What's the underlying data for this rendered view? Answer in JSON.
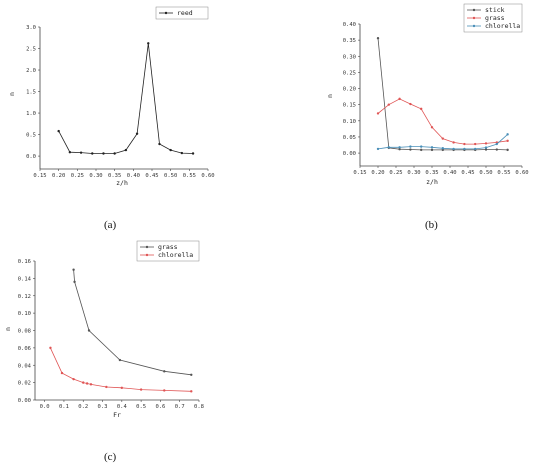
{
  "panel_labels": {
    "a": "(a)",
    "b": "(b)",
    "c": "(c)"
  },
  "chart_data": [
    {
      "id": "a",
      "type": "line",
      "xlabel": "z/h",
      "ylabel": "n",
      "xlim": [
        0.15,
        0.6
      ],
      "ylim": [
        -0.3,
        3.0
      ],
      "xticks": [
        0.15,
        0.2,
        0.25,
        0.3,
        0.35,
        0.4,
        0.45,
        0.5,
        0.55,
        0.6
      ],
      "yticks": [
        0.0,
        0.5,
        1.0,
        1.5,
        2.0,
        2.5,
        3.0
      ],
      "xtick_labels": [
        "0.15",
        "0.20",
        "0.25",
        "0.30",
        "0.35",
        "0.40",
        "0.45",
        "0.50",
        "0.55",
        "0.60"
      ],
      "ytick_labels": [
        "0.0",
        "0.5",
        "1.0",
        "1.5",
        "2.0",
        "2.5",
        "3.0"
      ],
      "legend_position": "top-right",
      "series": [
        {
          "name": "reed",
          "color": "#222222",
          "x": [
            0.2,
            0.23,
            0.26,
            0.29,
            0.32,
            0.35,
            0.38,
            0.41,
            0.44,
            0.47,
            0.5,
            0.53,
            0.56
          ],
          "y": [
            0.58,
            0.09,
            0.08,
            0.06,
            0.06,
            0.06,
            0.14,
            0.52,
            2.62,
            0.28,
            0.14,
            0.07,
            0.06
          ]
        }
      ]
    },
    {
      "id": "b",
      "type": "line",
      "xlabel": "z/h",
      "ylabel": "n",
      "xlim": [
        0.15,
        0.6
      ],
      "ylim": [
        -0.04,
        0.4
      ],
      "xticks": [
        0.15,
        0.2,
        0.25,
        0.3,
        0.35,
        0.4,
        0.45,
        0.5,
        0.55,
        0.6
      ],
      "yticks": [
        0.0,
        0.05,
        0.1,
        0.15,
        0.2,
        0.25,
        0.3,
        0.35,
        0.4
      ],
      "xtick_labels": [
        "0.15",
        "0.20",
        "0.25",
        "0.30",
        "0.35",
        "0.40",
        "0.45",
        "0.50",
        "0.55",
        "0.60"
      ],
      "ytick_labels": [
        "0.00",
        "0.05",
        "0.10",
        "0.15",
        "0.20",
        "0.25",
        "0.30",
        "0.35",
        "0.40"
      ],
      "legend_position": "top-right",
      "series": [
        {
          "name": "stick",
          "color": "#555555",
          "x": [
            0.2,
            0.23,
            0.26,
            0.29,
            0.32,
            0.35,
            0.38,
            0.41,
            0.44,
            0.47,
            0.5,
            0.53,
            0.56
          ],
          "y": [
            0.356,
            0.016,
            0.012,
            0.011,
            0.01,
            0.01,
            0.01,
            0.01,
            0.01,
            0.01,
            0.011,
            0.011,
            0.01
          ]
        },
        {
          "name": "grass",
          "color": "#e05555",
          "x": [
            0.2,
            0.23,
            0.26,
            0.29,
            0.32,
            0.35,
            0.38,
            0.41,
            0.44,
            0.47,
            0.5,
            0.53,
            0.56
          ],
          "y": [
            0.123,
            0.15,
            0.168,
            0.152,
            0.137,
            0.08,
            0.045,
            0.033,
            0.028,
            0.028,
            0.03,
            0.033,
            0.038
          ]
        },
        {
          "name": "chlorella",
          "color": "#4a8fb8",
          "x": [
            0.2,
            0.23,
            0.26,
            0.29,
            0.32,
            0.35,
            0.38,
            0.41,
            0.44,
            0.47,
            0.5,
            0.53,
            0.56
          ],
          "y": [
            0.013,
            0.018,
            0.018,
            0.02,
            0.02,
            0.018,
            0.015,
            0.013,
            0.013,
            0.013,
            0.017,
            0.028,
            0.058
          ]
        }
      ]
    },
    {
      "id": "c",
      "type": "line",
      "xlabel": "Fr",
      "ylabel": "n",
      "xlim": [
        -0.05,
        0.8
      ],
      "ylim": [
        0.0,
        0.16
      ],
      "xticks": [
        0.0,
        0.1,
        0.2,
        0.3,
        0.4,
        0.5,
        0.6,
        0.7,
        0.8
      ],
      "yticks": [
        0.0,
        0.02,
        0.04,
        0.06,
        0.08,
        0.1,
        0.12,
        0.14,
        0.16
      ],
      "xtick_labels": [
        "0.0",
        "0.1",
        "0.2",
        "0.3",
        "0.4",
        "0.5",
        "0.6",
        "0.7",
        "0.8"
      ],
      "ytick_labels": [
        "0.00",
        "0.02",
        "0.04",
        "0.06",
        "0.08",
        "0.10",
        "0.12",
        "0.14",
        "0.16"
      ],
      "legend_position": "top-right",
      "series": [
        {
          "name": "grass",
          "color": "#555555",
          "x": [
            0.15,
            0.155,
            0.23,
            0.39,
            0.62,
            0.76
          ],
          "y": [
            0.15,
            0.136,
            0.08,
            0.046,
            0.033,
            0.029
          ]
        },
        {
          "name": "chlorella",
          "color": "#e05555",
          "x": [
            0.03,
            0.09,
            0.15,
            0.2,
            0.22,
            0.24,
            0.32,
            0.4,
            0.5,
            0.62,
            0.76
          ],
          "y": [
            0.06,
            0.031,
            0.024,
            0.02,
            0.019,
            0.018,
            0.015,
            0.014,
            0.012,
            0.011,
            0.01
          ]
        }
      ]
    }
  ]
}
